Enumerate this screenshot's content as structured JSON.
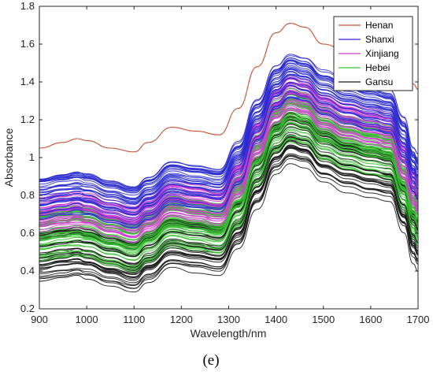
{
  "chart_data": {
    "type": "line",
    "title": "",
    "xlabel": "Wavelength/nm",
    "ylabel": "Absorbance",
    "xlim": [
      900,
      1700
    ],
    "ylim": [
      0.2,
      1.8
    ],
    "xticks": [
      "900",
      "1000",
      "1100",
      "1200",
      "1300",
      "1400",
      "1500",
      "1600",
      "1700"
    ],
    "yticks": [
      "0.2",
      "0.4",
      "0.6",
      "0.8",
      "1",
      "1.2",
      "1.4",
      "1.6",
      "1.8"
    ],
    "grid": false,
    "legend_position": "top-right",
    "x": [
      900,
      950,
      980,
      1000,
      1050,
      1100,
      1130,
      1180,
      1230,
      1280,
      1320,
      1360,
      1400,
      1430,
      1460,
      1500,
      1550,
      1600,
      1640,
      1670,
      1690,
      1700
    ],
    "series": [
      {
        "name": "Henan",
        "color": "#c9502e",
        "values": [
          1.05,
          1.08,
          1.1,
          1.09,
          1.05,
          1.03,
          1.08,
          1.16,
          1.14,
          1.12,
          1.26,
          1.48,
          1.66,
          1.71,
          1.69,
          1.6,
          1.56,
          1.53,
          1.52,
          1.46,
          1.39,
          1.36
        ]
      },
      {
        "name": "Shanxi",
        "color": "#2b2bd1",
        "values": [
          0.78,
          0.8,
          0.81,
          0.8,
          0.76,
          0.73,
          0.78,
          0.86,
          0.84,
          0.82,
          0.96,
          1.18,
          1.36,
          1.42,
          1.4,
          1.33,
          1.28,
          1.25,
          1.23,
          1.08,
          0.92,
          0.88
        ]
      },
      {
        "name": "Xinjiang",
        "color": "#d23cd2",
        "values": [
          0.7,
          0.72,
          0.73,
          0.72,
          0.68,
          0.65,
          0.7,
          0.78,
          0.76,
          0.74,
          0.88,
          1.1,
          1.28,
          1.34,
          1.32,
          1.24,
          1.19,
          1.16,
          1.14,
          0.98,
          0.84,
          0.8
        ]
      },
      {
        "name": "Hebei",
        "color": "#34c22e",
        "values": [
          0.58,
          0.6,
          0.61,
          0.6,
          0.56,
          0.53,
          0.58,
          0.66,
          0.64,
          0.62,
          0.76,
          0.98,
          1.16,
          1.22,
          1.2,
          1.12,
          1.07,
          1.04,
          1.02,
          0.86,
          0.71,
          0.67
        ]
      },
      {
        "name": "Gansu",
        "color": "#1a1a1a",
        "values": [
          0.47,
          0.49,
          0.5,
          0.49,
          0.45,
          0.42,
          0.47,
          0.55,
          0.53,
          0.51,
          0.65,
          0.87,
          1.05,
          1.11,
          1.09,
          1.01,
          0.96,
          0.93,
          0.91,
          0.75,
          0.59,
          0.55
        ]
      }
    ]
  },
  "caption": "(e)"
}
